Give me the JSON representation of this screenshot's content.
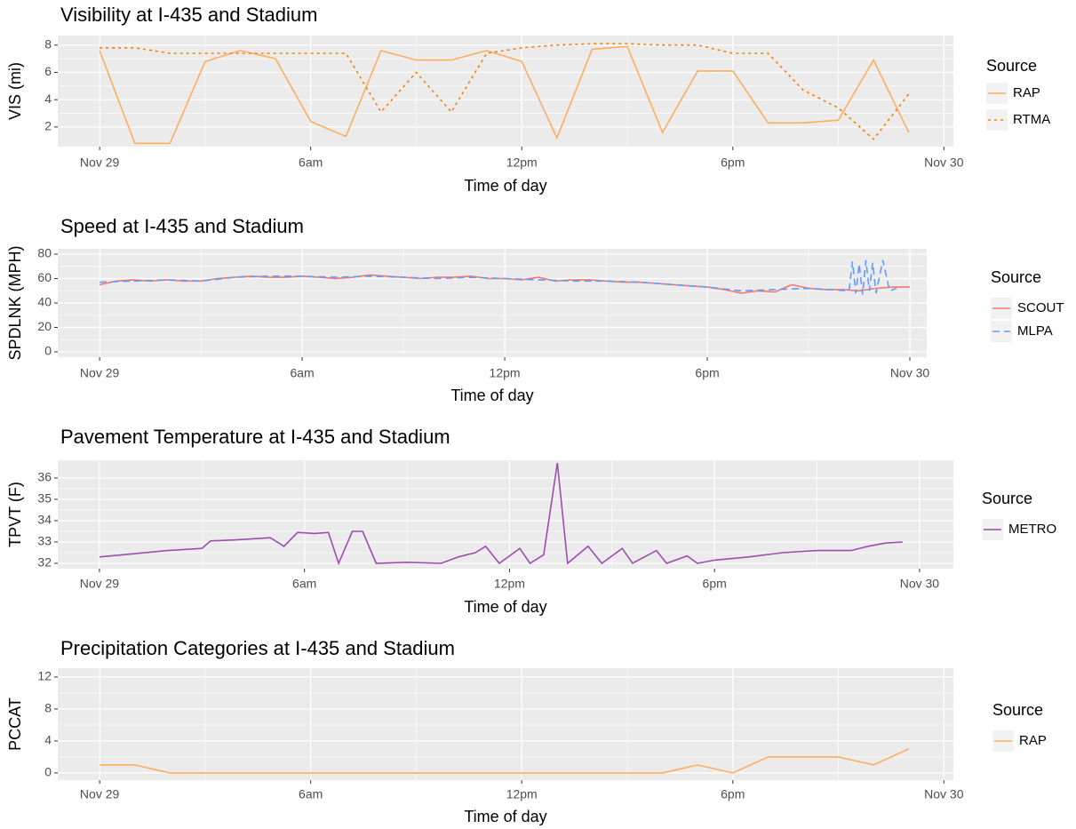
{
  "chart_data": [
    {
      "type": "line",
      "title": "Visibility at I-435 and Stadium",
      "x_label": "Time of day",
      "y_label": "VIS (mi)",
      "xlim": [
        -1.19,
        24.27
      ],
      "ylim": [
        0.56,
        8.7
      ],
      "xticks": [
        {
          "value": 0,
          "label": "Nov 29"
        },
        {
          "value": 6,
          "label": "6am"
        },
        {
          "value": 12,
          "label": "12pm"
        },
        {
          "value": 18,
          "label": "6pm"
        },
        {
          "value": 24,
          "label": "Nov 30"
        }
      ],
      "yticks": [
        2,
        4,
        6,
        8
      ],
      "grid": true,
      "legend_title": "Source",
      "series": [
        {
          "name": "RAP",
          "color": "#FDAE61",
          "dash": "solid",
          "x": [
            0,
            1,
            2,
            3,
            4,
            5,
            6,
            7,
            8,
            9,
            10,
            11,
            12,
            13,
            14,
            15,
            16,
            17,
            18,
            19,
            20,
            21,
            22,
            23
          ],
          "values": [
            7.6,
            0.8,
            0.8,
            6.8,
            7.6,
            7.0,
            2.4,
            1.3,
            7.6,
            6.9,
            6.9,
            7.6,
            6.8,
            1.2,
            7.7,
            7.9,
            1.6,
            6.1,
            6.1,
            2.3,
            2.3,
            2.5,
            6.9,
            1.6
          ]
        },
        {
          "name": "RTMA",
          "color": "#FF7F00",
          "dash": "dotted",
          "x": [
            0,
            1,
            2,
            3,
            4,
            5,
            6,
            7,
            8,
            9,
            10,
            11,
            12,
            13,
            14,
            15,
            16,
            17,
            18,
            19,
            20,
            21,
            22,
            23
          ],
          "values": [
            7.8,
            7.8,
            7.4,
            7.4,
            7.4,
            7.4,
            7.4,
            7.4,
            3.1,
            6.0,
            3.1,
            7.4,
            7.8,
            8.0,
            8.1,
            8.1,
            8.0,
            8.0,
            7.4,
            7.4,
            4.7,
            3.4,
            1.1,
            4.4
          ]
        }
      ]
    },
    {
      "type": "line",
      "title": "Speed at I-435 and Stadium",
      "x_label": "Time of day",
      "y_label": "SPDLNK (MPH)",
      "xlim": [
        -1.24,
        24.5
      ],
      "ylim": [
        -4.4,
        84.4
      ],
      "xticks": [
        {
          "value": 0,
          "label": "Nov 29"
        },
        {
          "value": 6,
          "label": "6am"
        },
        {
          "value": 12,
          "label": "12pm"
        },
        {
          "value": 18,
          "label": "6pm"
        },
        {
          "value": 24,
          "label": "Nov 30"
        }
      ],
      "yticks": [
        0,
        20,
        40,
        60,
        80
      ],
      "grid": true,
      "legend_title": "Source",
      "series": [
        {
          "name": "SCOUT",
          "color": "#F8766D",
          "dash": "solid",
          "x": [
            0,
            0.5,
            1,
            1.5,
            2,
            2.5,
            3,
            3.5,
            4,
            4.5,
            5,
            5.5,
            6,
            6.5,
            7,
            7.5,
            8,
            8.5,
            9,
            9.5,
            10,
            10.5,
            11,
            11.5,
            12,
            12.5,
            13,
            13.5,
            14,
            14.5,
            15,
            15.5,
            16,
            16.5,
            17,
            17.5,
            18,
            18.5,
            19,
            19.5,
            20,
            20.5,
            21,
            21.5,
            22,
            22.5,
            23,
            23.5,
            24
          ],
          "values": [
            55,
            58,
            59,
            58,
            59,
            58,
            58,
            60,
            61,
            62,
            61,
            61,
            62,
            61,
            60,
            61,
            63,
            62,
            61,
            60,
            61,
            61,
            62,
            60,
            60,
            59,
            61,
            58,
            59,
            59,
            58,
            57,
            57,
            56,
            55,
            54,
            53,
            51,
            48,
            50,
            49,
            55,
            52,
            51,
            51,
            50,
            52,
            53,
            53
          ]
        },
        {
          "name": "MLPA",
          "color": "#619CFF",
          "dash": "dashed",
          "x": [
            0,
            1,
            2,
            3,
            4,
            5,
            6,
            7,
            8,
            9,
            10,
            11,
            12,
            13,
            14,
            15,
            16,
            17,
            18,
            19,
            20,
            21,
            22.2,
            22.3,
            22.4,
            22.5,
            22.6,
            22.7,
            22.8,
            22.9,
            23,
            23.2,
            23.4,
            23.6
          ],
          "values": [
            57,
            58,
            59,
            58,
            61,
            62,
            62,
            61,
            62,
            61,
            60,
            61,
            60,
            59,
            58,
            58,
            57,
            55,
            53,
            50,
            51,
            52,
            50,
            74,
            48,
            72,
            47,
            75,
            50,
            73,
            48,
            75,
            50,
            52
          ]
        }
      ]
    },
    {
      "type": "line",
      "title": "Pavement Temperature at I-435 and Stadium",
      "x_label": "Time of day",
      "y_label": "TPVT (F)",
      "xlim": [
        -1.22,
        24.99
      ],
      "ylim": [
        31.75,
        36.83
      ],
      "xticks": [
        {
          "value": 0,
          "label": "Nov 29"
        },
        {
          "value": 6,
          "label": "6am"
        },
        {
          "value": 12,
          "label": "12pm"
        },
        {
          "value": 18,
          "label": "6pm"
        },
        {
          "value": 24,
          "label": "Nov 30"
        }
      ],
      "yticks": [
        32,
        33,
        34,
        35,
        36
      ],
      "grid": true,
      "legend_title": "Source",
      "series": [
        {
          "name": "METRO",
          "color": "#9D4DB0",
          "dash": "solid",
          "x": [
            0,
            2,
            3,
            3.25,
            4,
            5,
            5.4,
            5.8,
            6.3,
            6.7,
            7.0,
            7.4,
            7.7,
            8.1,
            9,
            10,
            10.5,
            11,
            11.3,
            11.7,
            12.3,
            12.6,
            13.0,
            13.4,
            13.7,
            14.3,
            14.7,
            15.3,
            15.6,
            16.3,
            16.6,
            17.2,
            17.5,
            18,
            19,
            20,
            21,
            22,
            22.5,
            23,
            23.5
          ],
          "values": [
            32.3,
            32.6,
            32.7,
            33.05,
            33.1,
            33.2,
            32.8,
            33.45,
            33.4,
            33.45,
            32.0,
            33.5,
            33.5,
            32.0,
            32.05,
            32.0,
            32.3,
            32.5,
            32.8,
            32.0,
            32.7,
            32.0,
            32.4,
            36.7,
            32.0,
            32.8,
            32.0,
            32.7,
            32.0,
            32.6,
            32.0,
            32.35,
            32.0,
            32.15,
            32.3,
            32.5,
            32.6,
            32.6,
            32.8,
            32.95,
            33.0
          ]
        }
      ]
    },
    {
      "type": "line",
      "title": "Precipitation Categories at I-435 and Stadium",
      "x_label": "Time of day",
      "y_label": "PCCAT",
      "xlim": [
        -1.19,
        24.27
      ],
      "ylim": [
        -0.9,
        13.1
      ],
      "xticks": [
        {
          "value": 0,
          "label": "Nov 29"
        },
        {
          "value": 6,
          "label": "6am"
        },
        {
          "value": 12,
          "label": "12pm"
        },
        {
          "value": 18,
          "label": "6pm"
        },
        {
          "value": 24,
          "label": "Nov 30"
        }
      ],
      "yticks": [
        0,
        4,
        8,
        12
      ],
      "grid": true,
      "legend_title": "Source",
      "series": [
        {
          "name": "RAP",
          "color": "#FDAE61",
          "dash": "solid",
          "x": [
            0,
            1,
            2,
            3,
            4,
            5,
            6,
            7,
            8,
            9,
            10,
            11,
            12,
            13,
            14,
            15,
            16,
            17,
            18,
            19,
            20,
            21,
            22,
            23
          ],
          "values": [
            1,
            1,
            0,
            0,
            0,
            0,
            0,
            0,
            0,
            0,
            0,
            0,
            0,
            0,
            0,
            0,
            0,
            1,
            0,
            2,
            2,
            2,
            1,
            3
          ]
        }
      ]
    }
  ]
}
